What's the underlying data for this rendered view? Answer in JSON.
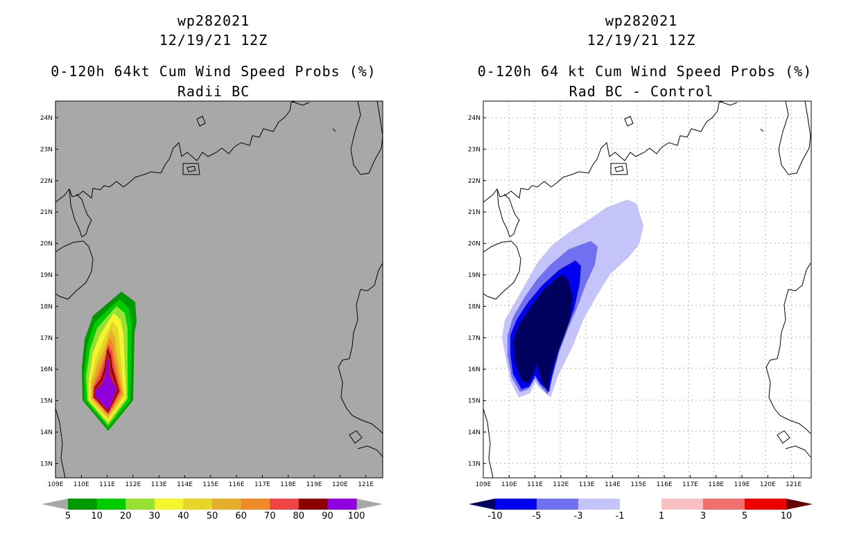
{
  "left": {
    "title_line1": "wp282021",
    "title_line2": "12/19/21 12Z",
    "title_line3": "0-120h 64kt Cum Wind Speed Probs (%)",
    "title_line4": "Radii BC",
    "colorbar": {
      "labels": [
        "5",
        "10",
        "20",
        "30",
        "40",
        "50",
        "60",
        "70",
        "80",
        "90",
        "100"
      ],
      "colors": [
        "#009900",
        "#00cc00",
        "#99e034",
        "#f5f52e",
        "#e6d62a",
        "#e5ae2b",
        "#ef8a2a",
        "#f04545",
        "#8c0000",
        "#8f00dd"
      ],
      "low_arrow_color": "#a8a8a8",
      "high_arrow_color": "#a8a8a8"
    }
  },
  "right": {
    "title_line1": "wp282021",
    "title_line2": "12/19/21 12Z",
    "title_line3": "0-120h 64 kt Cum Wind Speed Probs (%)",
    "title_line4": "Rad BC - Control",
    "colorbar": {
      "labels": [
        "-10",
        "-5",
        "-3",
        "-1",
        "1",
        "3",
        "5",
        "10"
      ],
      "colors": [
        "#0000ee",
        "#7070f0",
        "#c4c4fa",
        "#ffffff",
        "#f8c0c0",
        "#f06f6f",
        "#ee0000"
      ],
      "low_arrow_color": "#00005e",
      "high_arrow_color": "#660000"
    }
  },
  "axes": {
    "lon_labels": [
      "109E",
      "110E",
      "111E",
      "112E",
      "113E",
      "114E",
      "115E",
      "116E",
      "117E",
      "118E",
      "119E",
      "120E",
      "121E"
    ],
    "lat_labels": [
      "24N",
      "23N",
      "22N",
      "21N",
      "20N",
      "19N",
      "18N",
      "17N",
      "16N",
      "15N",
      "14N",
      "13N"
    ]
  },
  "colors": {
    "left_map_bg": "#a8a8a8",
    "grid": "#b0b0b0",
    "coast": "#000000"
  }
}
